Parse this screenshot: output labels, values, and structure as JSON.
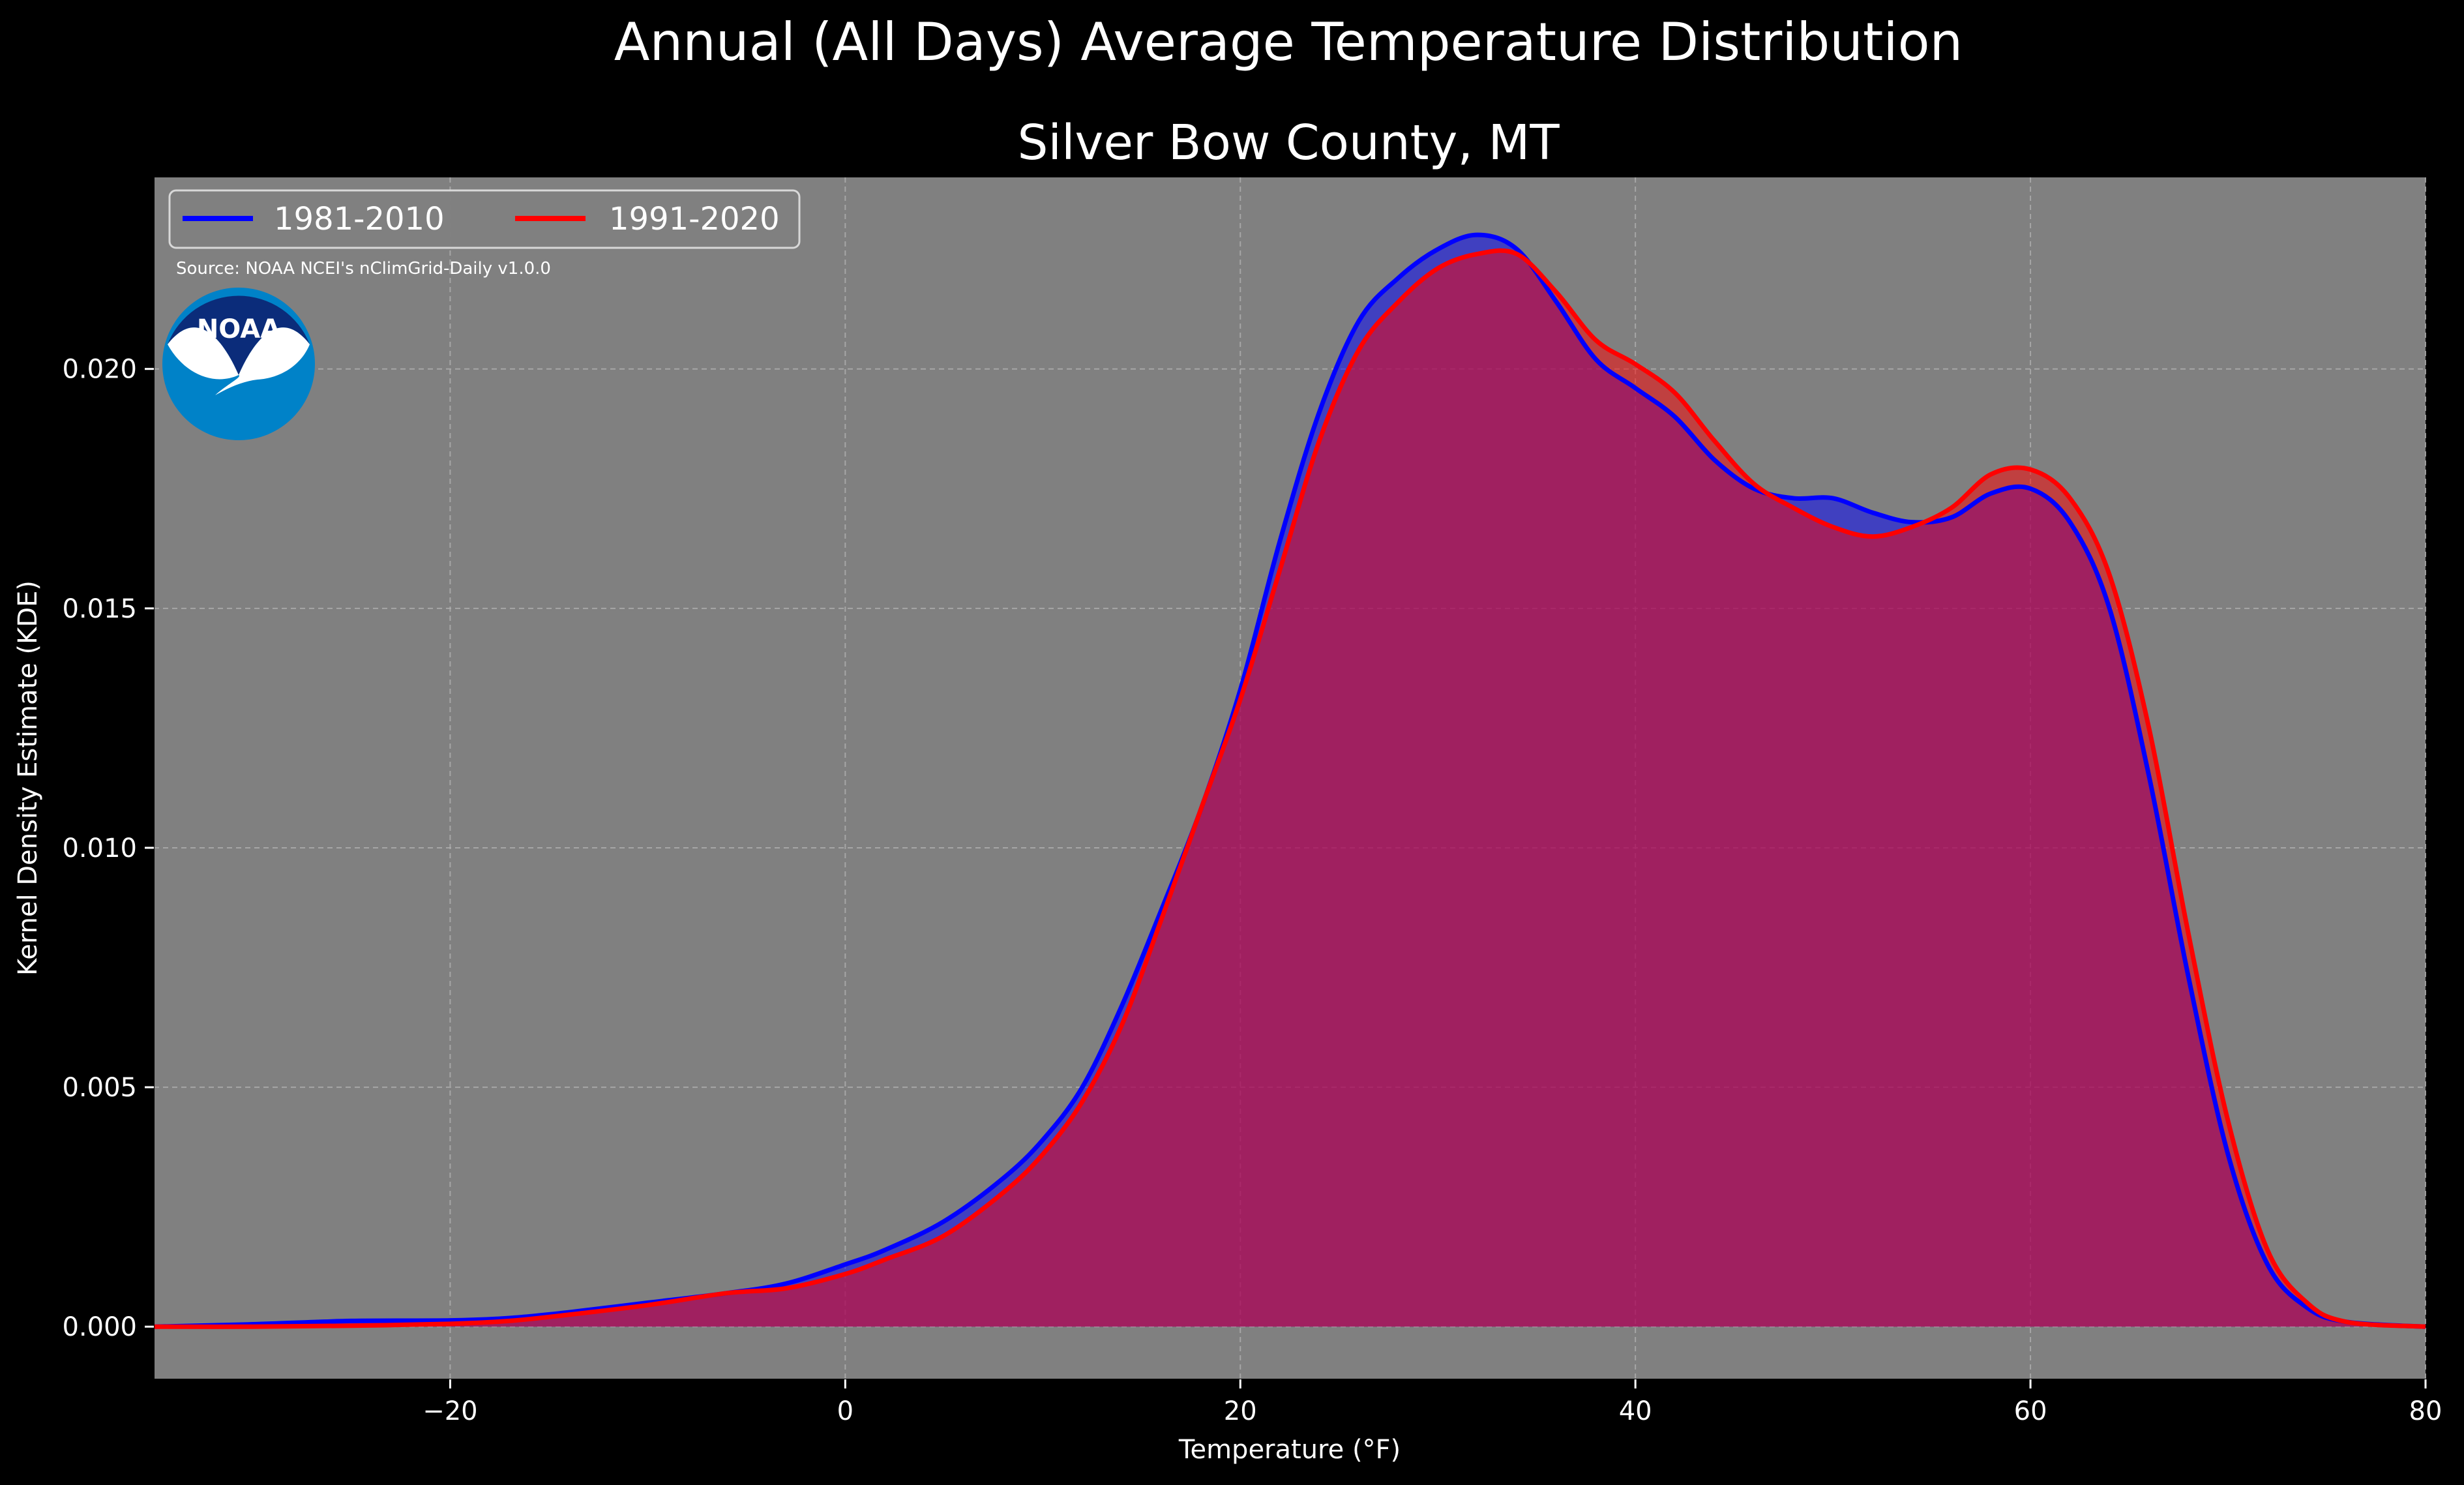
{
  "title": "Annual (All Days) Average Temperature Distribution",
  "subtitle": "Silver Bow County, MT",
  "source": "Source: NOAA NCEI's nClimGrid-Daily v1.0.0",
  "logo_text": "NOAA",
  "colors": {
    "background": "#000000",
    "plot_background": "#808080",
    "series_1981": "#0000ff",
    "series_1991": "#ff0000",
    "grid": "#b0b0b0"
  },
  "chart_data": {
    "type": "area",
    "title": "Annual (All Days) Average Temperature Distribution",
    "subtitle": "Silver Bow County, MT",
    "xlabel": "Temperature ($^\\circ$F)",
    "xlabel_display": "Temperature (°F)",
    "ylabel": "Kernel Density Estimate (KDE)",
    "xlim": [
      -35,
      80
    ],
    "ylim": [
      -0.0011,
      0.024
    ],
    "x_ticks": [
      -20,
      0,
      20,
      40,
      60,
      80
    ],
    "x_tick_labels": [
      "−20",
      "0",
      "20",
      "40",
      "60",
      "80"
    ],
    "y_ticks": [
      0.0,
      0.005,
      0.01,
      0.015,
      0.02
    ],
    "y_tick_labels": [
      "0.000",
      "0.005",
      "0.010",
      "0.015",
      "0.020"
    ],
    "grid": true,
    "legend_position": "top-left",
    "series": [
      {
        "name": "1981-2010",
        "color": "#0000ff",
        "points": [
          [
            -35,
            0.0
          ],
          [
            -30,
            5e-05
          ],
          [
            -25,
            0.00012
          ],
          [
            -20,
            0.00013
          ],
          [
            -17,
            0.00018
          ],
          [
            -14,
            0.0003
          ],
          [
            -10,
            0.0005
          ],
          [
            -6,
            0.0007
          ],
          [
            -3,
            0.0009
          ],
          [
            0,
            0.0013
          ],
          [
            2,
            0.0016
          ],
          [
            5,
            0.0022
          ],
          [
            8,
            0.0031
          ],
          [
            10,
            0.0039
          ],
          [
            12,
            0.005
          ],
          [
            14,
            0.0067
          ],
          [
            16,
            0.0087
          ],
          [
            18,
            0.0108
          ],
          [
            20,
            0.0133
          ],
          [
            22,
            0.0164
          ],
          [
            24,
            0.0191
          ],
          [
            26,
            0.021
          ],
          [
            28,
            0.0219
          ],
          [
            30,
            0.0225
          ],
          [
            32,
            0.0228
          ],
          [
            34,
            0.0225
          ],
          [
            36,
            0.0214
          ],
          [
            38,
            0.0202
          ],
          [
            40,
            0.0196
          ],
          [
            42,
            0.019
          ],
          [
            44,
            0.0181
          ],
          [
            46,
            0.0175
          ],
          [
            48,
            0.0173
          ],
          [
            50,
            0.0173
          ],
          [
            52,
            0.017
          ],
          [
            54,
            0.0168
          ],
          [
            56,
            0.0169
          ],
          [
            58,
            0.0174
          ],
          [
            60,
            0.0175
          ],
          [
            62,
            0.0168
          ],
          [
            64,
            0.015
          ],
          [
            66,
            0.0115
          ],
          [
            68,
            0.0073
          ],
          [
            70,
            0.0036
          ],
          [
            72,
            0.0013
          ],
          [
            74,
            0.0004
          ],
          [
            76,
            0.0001
          ],
          [
            80,
            0.0
          ]
        ]
      },
      {
        "name": "1991-2020",
        "color": "#ff0000",
        "points": [
          [
            -35,
            0.0
          ],
          [
            -30,
            0.0
          ],
          [
            -25,
            2e-05
          ],
          [
            -20,
            6e-05
          ],
          [
            -17,
            0.00012
          ],
          [
            -14,
            0.00025
          ],
          [
            -10,
            0.00045
          ],
          [
            -6,
            0.0007
          ],
          [
            -3,
            0.0008
          ],
          [
            0,
            0.0011
          ],
          [
            2,
            0.0014
          ],
          [
            5,
            0.0019
          ],
          [
            8,
            0.0028
          ],
          [
            10,
            0.0036
          ],
          [
            12,
            0.0047
          ],
          [
            14,
            0.0063
          ],
          [
            16,
            0.0085
          ],
          [
            18,
            0.0108
          ],
          [
            20,
            0.0131
          ],
          [
            22,
            0.0158
          ],
          [
            24,
            0.0185
          ],
          [
            26,
            0.0204
          ],
          [
            28,
            0.0214
          ],
          [
            30,
            0.0221
          ],
          [
            32,
            0.0224
          ],
          [
            34,
            0.0224
          ],
          [
            36,
            0.0216
          ],
          [
            38,
            0.0206
          ],
          [
            40,
            0.0201
          ],
          [
            42,
            0.0195
          ],
          [
            44,
            0.0185
          ],
          [
            46,
            0.0176
          ],
          [
            48,
            0.0171
          ],
          [
            50,
            0.0167
          ],
          [
            52,
            0.0165
          ],
          [
            54,
            0.0167
          ],
          [
            56,
            0.0171
          ],
          [
            58,
            0.0178
          ],
          [
            60,
            0.0179
          ],
          [
            62,
            0.0173
          ],
          [
            64,
            0.0157
          ],
          [
            66,
            0.0125
          ],
          [
            68,
            0.0082
          ],
          [
            70,
            0.0043
          ],
          [
            72,
            0.0016
          ],
          [
            74,
            0.0005
          ],
          [
            76,
            0.0001
          ],
          [
            80,
            0.0
          ]
        ]
      }
    ]
  }
}
